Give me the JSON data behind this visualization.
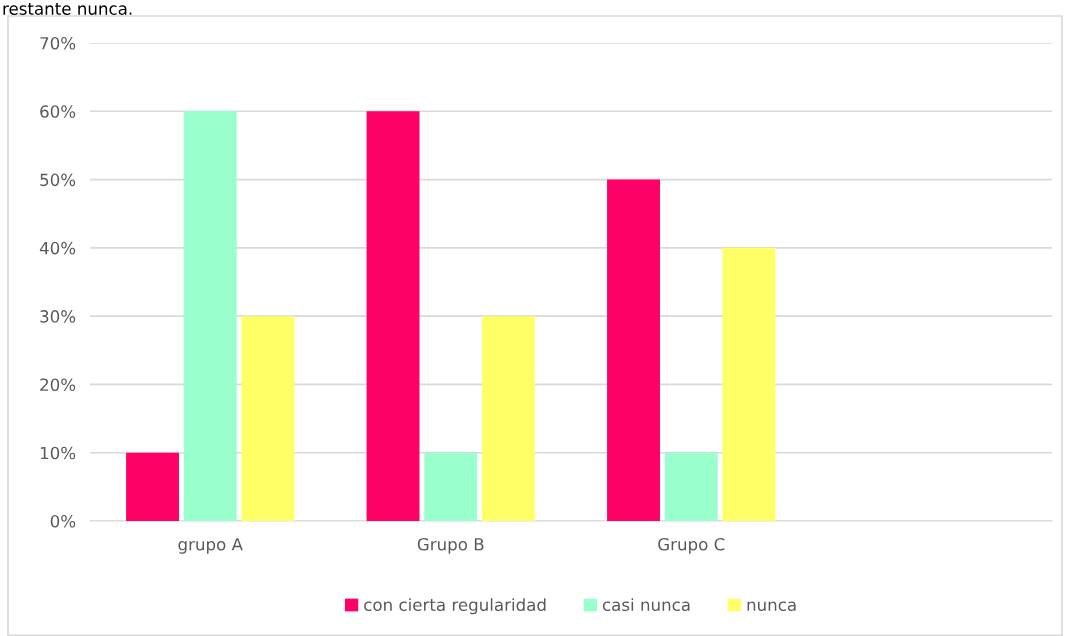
{
  "chart_data": {
    "type": "bar",
    "categories": [
      "grupo A",
      "Grupo B",
      "Grupo C",
      null
    ],
    "series": [
      {
        "name": "con cierta regularidad",
        "color": "#ff0066",
        "values": [
          10,
          60,
          50,
          null
        ]
      },
      {
        "name": "casi nunca",
        "color": "#99ffcc",
        "values": [
          60,
          10,
          10,
          null
        ]
      },
      {
        "name": "nunca",
        "color": "#ffff66",
        "values": [
          30,
          30,
          40,
          null
        ]
      }
    ],
    "ylim": [
      0,
      70
    ],
    "yticks": [
      {
        "value": 0,
        "label": "0%"
      },
      {
        "value": 10,
        "label": "10%"
      },
      {
        "value": 20,
        "label": "20%"
      },
      {
        "value": 30,
        "label": "30%"
      },
      {
        "value": 40,
        "label": "40%"
      },
      {
        "value": 50,
        "label": "50%"
      },
      {
        "value": 60,
        "label": "60%"
      },
      {
        "value": 70,
        "label": "70%"
      }
    ],
    "grid": "y",
    "legend": "bottom",
    "annotations": [
      "restante nunca."
    ]
  }
}
